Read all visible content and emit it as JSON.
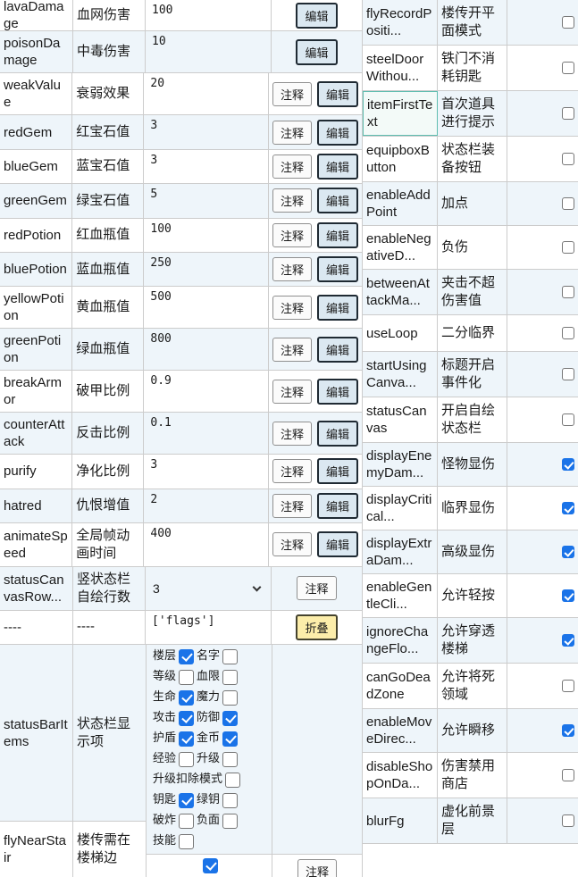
{
  "colors": {
    "row_alt_bg": "#eef5fa",
    "border": "#cccccc",
    "checkbox_accent": "#1a73e8",
    "edit_button_bg": "#dbe8f1",
    "edit_button_border": "#1f2a33",
    "fold_button_bg": "#fcedaa",
    "fold_button_border": "#45432e",
    "note_button_bg": "#fbfbfb",
    "note_button_border": "#8f8f8f",
    "selected_cell_border": "#5fbdb0",
    "selected_cell_bg": "#f3faf8"
  },
  "buttons": {
    "note": "注释",
    "edit": "编辑",
    "fold": "折叠"
  },
  "left_table": {
    "rows": [
      {
        "key": "lavaDamage",
        "name": "血网伤害",
        "value": "100",
        "buttons": [
          "edit"
        ]
      },
      {
        "key": "poisonDamage",
        "name": "中毒伤害",
        "value": "10",
        "buttons": [
          "edit"
        ]
      },
      {
        "key": "weakValue",
        "name": "衰弱效果",
        "value": "20",
        "buttons": [
          "note",
          "edit"
        ]
      },
      {
        "key": "redGem",
        "name": "红宝石值",
        "value": "3",
        "buttons": [
          "note",
          "edit"
        ]
      },
      {
        "key": "blueGem",
        "name": "蓝宝石值",
        "value": "3",
        "buttons": [
          "note",
          "edit"
        ]
      },
      {
        "key": "greenGem",
        "name": "绿宝石值",
        "value": "5",
        "buttons": [
          "note",
          "edit"
        ]
      },
      {
        "key": "redPotion",
        "name": "红血瓶值",
        "value": "100",
        "buttons": [
          "note",
          "edit"
        ]
      },
      {
        "key": "bluePotion",
        "name": "蓝血瓶值",
        "value": "250",
        "buttons": [
          "note",
          "edit"
        ]
      },
      {
        "key": "yellowPotion",
        "name": "黄血瓶值",
        "value": "500",
        "buttons": [
          "note",
          "edit"
        ]
      },
      {
        "key": "greenPotion",
        "name": "绿血瓶值",
        "value": "800",
        "buttons": [
          "note",
          "edit"
        ]
      },
      {
        "key": "breakArmor",
        "name": "破甲比例",
        "value": "0.9",
        "buttons": [
          "note",
          "edit"
        ]
      },
      {
        "key": "counterAttack",
        "name": "反击比例",
        "value": "0.1",
        "buttons": [
          "note",
          "edit"
        ]
      },
      {
        "key": "purify",
        "name": "净化比例",
        "value": "3",
        "buttons": [
          "note",
          "edit"
        ]
      },
      {
        "key": "hatred",
        "name": "仇恨增值",
        "value": "2",
        "buttons": [
          "note",
          "edit"
        ]
      },
      {
        "key": "animateSpeed",
        "name": "全局帧动画时间",
        "value": "400",
        "buttons": [
          "note",
          "edit"
        ]
      },
      {
        "key": "statusCanvasRow...",
        "name": "竖状态栏自绘行数",
        "value": "3",
        "type": "select",
        "buttons": [
          "note"
        ]
      },
      {
        "key": "----",
        "name": "----",
        "value": "['flags']",
        "buttons": [
          "fold"
        ]
      }
    ],
    "status_bar_items": {
      "key": "statusBarItems",
      "name": "状态栏显示项",
      "items": [
        {
          "label": "楼层",
          "checked": true
        },
        {
          "label": "名字",
          "checked": false
        },
        {
          "label": "等级",
          "checked": false
        },
        {
          "label": "血限",
          "checked": false
        },
        {
          "label": "生命",
          "checked": true
        },
        {
          "label": "魔力",
          "checked": false
        },
        {
          "label": "攻击",
          "checked": true
        },
        {
          "label": "防御",
          "checked": true
        },
        {
          "label": "护盾",
          "checked": true
        },
        {
          "label": "金币",
          "checked": true
        },
        {
          "label": "经验",
          "checked": false
        },
        {
          "label": "升级",
          "checked": false
        },
        {
          "label": "升级扣除模式",
          "checked": false
        },
        {
          "label": "钥匙",
          "checked": true
        },
        {
          "label": "绿钥",
          "checked": false
        },
        {
          "label": "破炸",
          "checked": false
        },
        {
          "label": "负面",
          "checked": false
        },
        {
          "label": "技能",
          "checked": false
        }
      ]
    },
    "fly_near_stair": {
      "key": "flyNearStair",
      "name": "楼传需在楼梯边",
      "checked": true,
      "buttons": [
        "note"
      ]
    }
  },
  "right_table": {
    "rows": [
      {
        "key": "flyRecordPositi...",
        "name": "楼传开平面模式",
        "checked": false
      },
      {
        "key": "steelDoorWithou...",
        "name": "铁门不消耗钥匙",
        "checked": false
      },
      {
        "key": "itemFirstText",
        "name": "首次道具进行提示",
        "checked": false,
        "selected": true
      },
      {
        "key": "equipboxButton",
        "name": "状态栏装备按钮",
        "checked": false
      },
      {
        "key": "enableAddPoint",
        "name": "加点",
        "checked": false
      },
      {
        "key": "enableNegativeD...",
        "name": "负伤",
        "checked": false
      },
      {
        "key": "betweenAttackMa...",
        "name": "夹击不超伤害值",
        "checked": false
      },
      {
        "key": "useLoop",
        "name": "二分临界",
        "checked": false
      },
      {
        "key": "startUsingCanva...",
        "name": "标题开启事件化",
        "checked": false
      },
      {
        "key": "statusCanvas",
        "name": "开启自绘状态栏",
        "checked": false
      },
      {
        "key": "displayEnemyDam...",
        "name": "怪物显伤",
        "checked": true
      },
      {
        "key": "displayCritical...",
        "name": "临界显伤",
        "checked": true
      },
      {
        "key": "displayExtraDam...",
        "name": "高级显伤",
        "checked": true
      },
      {
        "key": "enableGentleCli...",
        "name": "允许轻按",
        "checked": true
      },
      {
        "key": "ignoreChangeFlo...",
        "name": "允许穿透楼梯",
        "checked": true
      },
      {
        "key": "canGoDeadZone",
        "name": "允许将死领域",
        "checked": false
      },
      {
        "key": "enableMoveDirec...",
        "name": "允许瞬移",
        "checked": true
      },
      {
        "key": "disableShopOnDa...",
        "name": "伤害禁用商店",
        "checked": false
      },
      {
        "key": "blurFg",
        "name": "虚化前景层",
        "checked": false
      }
    ]
  }
}
